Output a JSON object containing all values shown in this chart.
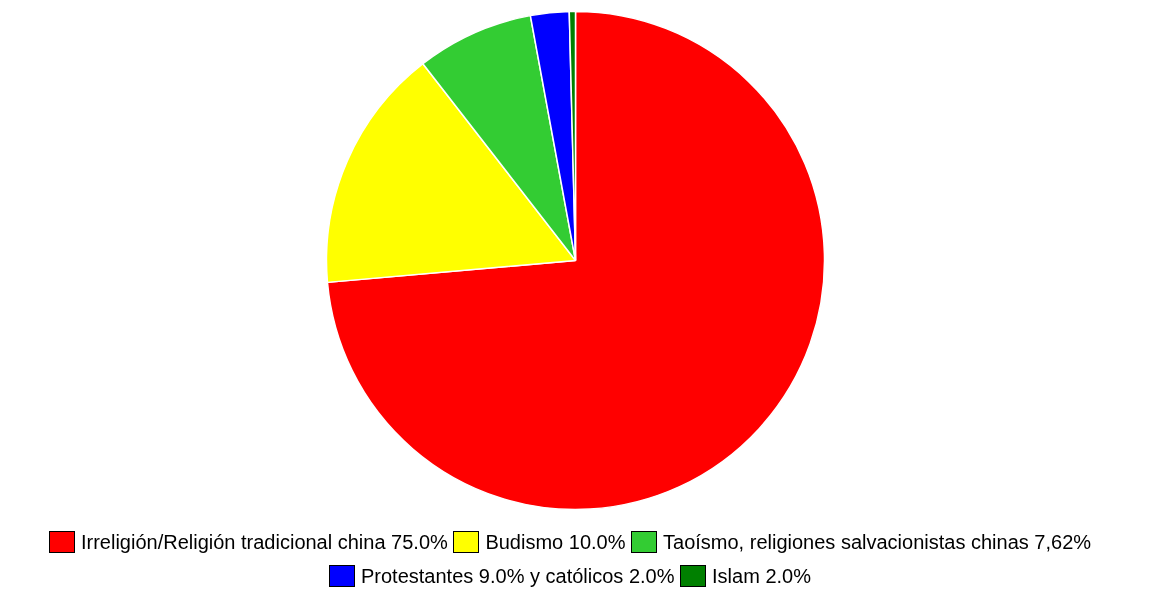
{
  "chart_data": {
    "type": "pie",
    "categories": [
      "Irreligión/Religión tradicional china 75.0%",
      "Budismo 10.0%",
      "Taoísmo, religiones salvacionistas chinas 7,62%",
      "Protestantes 9.0% y católicos 2.0%",
      "Islam 2.0%"
    ],
    "values": [
      73.6,
      15.9,
      7.6,
      2.5,
      0.4
    ],
    "colors": [
      "#ff0000",
      "#ffff00",
      "#33cc33",
      "#0000ff",
      "#008000"
    ],
    "legend": "bottom"
  }
}
